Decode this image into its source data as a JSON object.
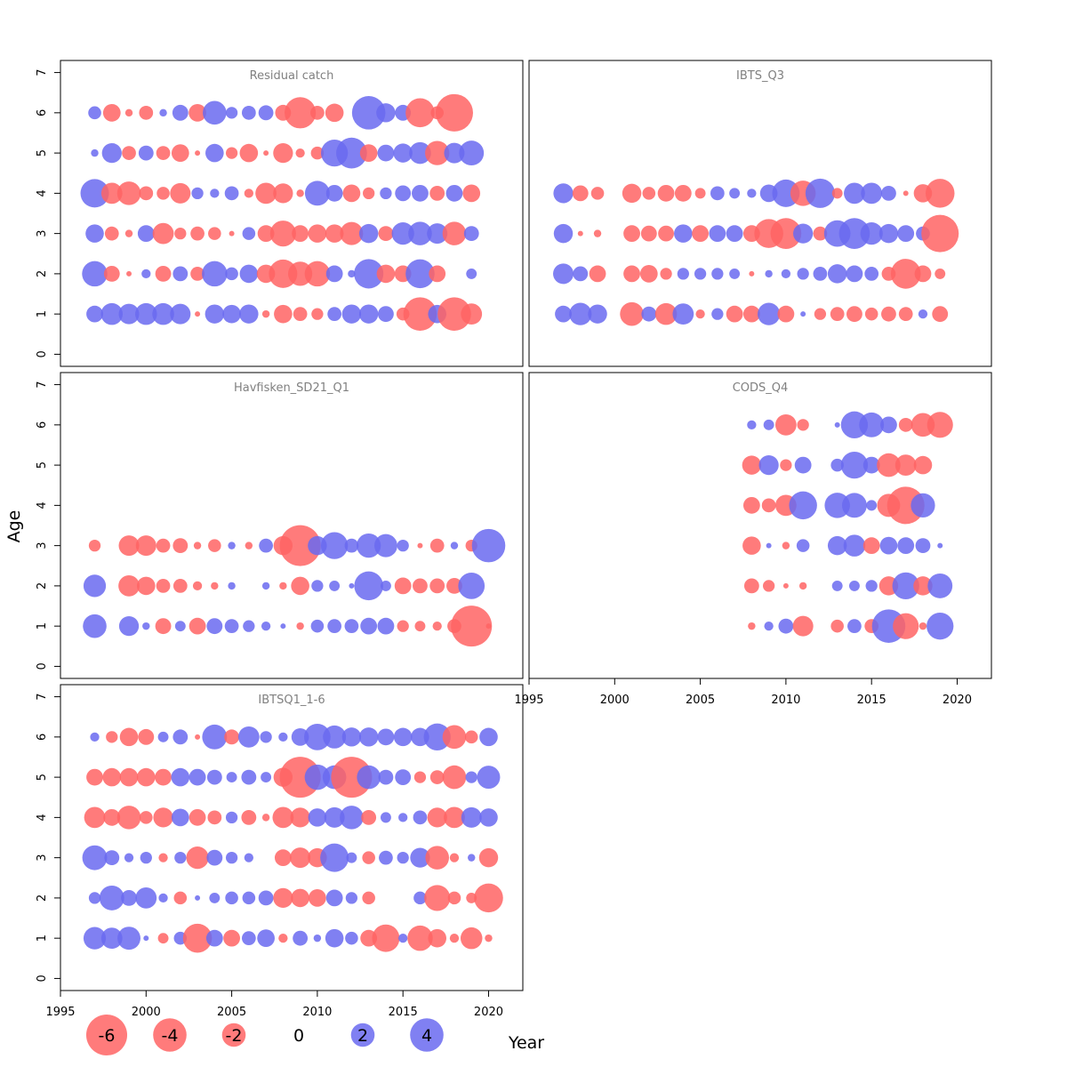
{
  "chart_data": {
    "type": "scatter",
    "subtype": "bubble-residuals",
    "xlabel": "Year",
    "ylabel": "Age",
    "xlim": [
      1995,
      2022
    ],
    "ylim": [
      -0.3,
      7.3
    ],
    "xticks": [
      1995,
      2000,
      2005,
      2010,
      2015,
      2020
    ],
    "yticks": [
      0,
      1,
      2,
      3,
      4,
      5,
      6,
      7
    ],
    "colors": {
      "positive": "#6a6af0",
      "negative": "#ff6464"
    },
    "legend": {
      "placement": "bottom",
      "values": [
        "-6",
        "-4",
        "-2",
        "0",
        "2",
        "4"
      ]
    },
    "panels": [
      {
        "title": "Residual catch",
        "years_start": 1997,
        "ages": [
          {
            "age": 1,
            "values": [
              1.0,
              1.7,
              1.5,
              1.7,
              1.7,
              1.5,
              -0.1,
              1.3,
              1.2,
              1.3,
              -0.2,
              -1.2,
              -0.7,
              -0.5,
              0.7,
              1.3,
              1.3,
              0.9,
              -0.6,
              -4.0,
              1.2,
              -4.0,
              -1.6
            ]
          },
          {
            "age": 2,
            "values": [
              2.3,
              -0.9,
              -0.1,
              0.3,
              -0.9,
              0.8,
              -0.7,
              2.3,
              0.6,
              1.2,
              -1.2,
              -2.9,
              -2.1,
              -2.3,
              1.0,
              0.2,
              3.1,
              -1.2,
              -1.0,
              3.0,
              -1.0,
              0.0,
              0.4
            ]
          },
          {
            "age": 3,
            "values": [
              1.2,
              -0.7,
              -0.2,
              1.0,
              -1.6,
              -0.5,
              -0.7,
              -0.6,
              -0.1,
              0.6,
              -1.0,
              -2.4,
              -1.0,
              -1.2,
              -1.2,
              -1.9,
              1.3,
              -0.8,
              1.8,
              2.0,
              1.5,
              -2.0,
              0.8
            ]
          },
          {
            "age": 4,
            "values": [
              2.9,
              -1.6,
              -2.0,
              -0.7,
              -0.6,
              -1.5,
              0.5,
              0.3,
              0.7,
              -0.3,
              -1.6,
              -1.4,
              -0.2,
              2.2,
              1.0,
              -1.1,
              -0.5,
              0.5,
              0.9,
              1.0,
              -0.8,
              1.0,
              -1.1
            ]
          },
          {
            "age": 5,
            "values": [
              0.2,
              1.4,
              -0.7,
              0.8,
              -0.7,
              -1.1,
              -0.1,
              1.2,
              -0.5,
              -1.2,
              -0.1,
              -1.4,
              -0.3,
              -0.6,
              2.6,
              3.4,
              -1.1,
              1.0,
              1.3,
              1.7,
              -2.1,
              1.5,
              2.2
            ]
          },
          {
            "age": 6,
            "values": [
              0.6,
              -1.1,
              -0.2,
              -0.7,
              0.2,
              0.9,
              -1.1,
              2.0,
              0.5,
              0.7,
              0.8,
              -0.9,
              -3.5,
              -0.7,
              -1.2,
              0.0,
              4.0,
              1.3,
              0.9,
              -3.0,
              -0.6,
              -5.0,
              0.0
            ]
          }
        ]
      },
      {
        "title": "IBTS_Q3",
        "years_start": 1997,
        "ages": [
          {
            "age": 1,
            "values": [
              1.0,
              1.8,
              1.3,
              0.0,
              -2.0,
              0.8,
              -1.7,
              1.6,
              -0.3,
              0.5,
              -1.0,
              -1.0,
              1.8,
              -1.0,
              0.1,
              -0.5,
              -0.7,
              -0.9,
              -0.6,
              -0.8,
              -0.7,
              0.3,
              -0.9
            ]
          },
          {
            "age": 2,
            "values": [
              1.5,
              0.8,
              -1.0,
              0.0,
              -1.0,
              -1.1,
              -0.5,
              0.5,
              0.5,
              0.5,
              0.4,
              -0.1,
              0.2,
              0.3,
              0.5,
              0.7,
              1.3,
              1.0,
              0.7,
              -0.7,
              -3.2,
              -1.0,
              -0.4
            ]
          },
          {
            "age": 3,
            "values": [
              1.3,
              -0.1,
              -0.2,
              0.0,
              -1.0,
              -0.9,
              -0.9,
              1.2,
              -1.0,
              1.0,
              1.0,
              -1.0,
              -3.0,
              -3.4,
              1.4,
              -0.7,
              2.5,
              3.4,
              1.8,
              1.3,
              1.0,
              0.7,
              -5.0
            ]
          },
          {
            "age": 4,
            "values": [
              1.4,
              -0.9,
              -0.6,
              0.0,
              -1.3,
              -0.6,
              -1.0,
              -1.0,
              -0.4,
              0.7,
              0.4,
              0.3,
              1.1,
              2.7,
              -2.3,
              3.1,
              -0.4,
              1.6,
              1.6,
              0.8,
              -0.1,
              -1.2,
              -3.0
            ]
          }
        ]
      },
      {
        "title": "Havfisken_SD21_Q1",
        "years_start": 1997,
        "ages": [
          {
            "age": 1,
            "values": [
              2.0,
              0.0,
              1.4,
              0.2,
              -0.9,
              0.4,
              -1.0,
              0.9,
              0.7,
              0.5,
              0.3,
              0.1,
              -0.2,
              0.6,
              0.7,
              0.7,
              1.0,
              1.0,
              -0.5,
              -0.4,
              -0.3,
              -0.7,
              -6.0,
              -0.1
            ]
          },
          {
            "age": 2,
            "values": [
              1.8,
              0.0,
              -1.6,
              -1.2,
              -0.7,
              -0.7,
              -0.3,
              -0.2,
              0.2,
              0.0,
              0.2,
              -0.2,
              -1.2,
              0.5,
              0.4,
              0.1,
              3.0,
              0.4,
              -1.0,
              -0.8,
              -0.8,
              -0.9,
              2.5
            ]
          },
          {
            "age": 3,
            "values": [
              -0.5,
              0.0,
              -1.5,
              -1.5,
              -0.7,
              -0.8,
              -0.2,
              -0.6,
              0.2,
              -0.2,
              0.7,
              -1.3,
              -6.0,
              1.3,
              2.6,
              0.7,
              2.1,
              1.9,
              0.5,
              -0.1,
              -0.7,
              0.2,
              -0.5,
              4.0
            ]
          }
        ]
      },
      {
        "title": "CODS_Q4",
        "years_start": 2008,
        "ages": [
          {
            "age": 1,
            "values": [
              -0.2,
              0.3,
              0.8,
              -1.5,
              0.0,
              -0.6,
              0.7,
              -0.7,
              4.0,
              -2.4,
              -0.2,
              2.6
            ]
          },
          {
            "age": 2,
            "values": [
              -0.8,
              -0.5,
              -0.1,
              -0.2,
              0.0,
              0.4,
              0.4,
              0.5,
              -1.3,
              2.6,
              -1.3,
              2.2
            ]
          },
          {
            "age": 3,
            "values": [
              -1.2,
              0.1,
              -0.2,
              0.6,
              0.0,
              1.3,
              1.7,
              -1.0,
              1.1,
              1.0,
              0.8,
              0.1
            ]
          },
          {
            "age": 4,
            "values": [
              -1.0,
              -0.7,
              -1.6,
              2.8,
              0.0,
              2.3,
              2.2,
              0.4,
              -1.9,
              -5.0,
              2.1,
              0.0
            ]
          },
          {
            "age": 5,
            "values": [
              -1.3,
              1.4,
              -0.5,
              1.0,
              0.0,
              0.6,
              2.6,
              1.0,
              -2.0,
              -1.6,
              -1.2,
              0.0
            ]
          },
          {
            "age": 6,
            "values": [
              0.3,
              0.4,
              -1.6,
              -0.5,
              0.0,
              0.1,
              2.6,
              2.2,
              1.0,
              -0.7,
              -2.0,
              -2.4
            ]
          }
        ]
      },
      {
        "title": "IBTSQ1_1-6",
        "years_start": 1997,
        "ages": [
          {
            "age": 1,
            "values": [
              1.8,
              1.6,
              1.9,
              0.1,
              -0.4,
              0.6,
              -3.0,
              1.0,
              -1.0,
              0.7,
              1.1,
              -0.3,
              0.8,
              0.2,
              1.2,
              0.6,
              -1.0,
              -2.7,
              0.3,
              -2.3,
              -1.2,
              -0.3,
              -1.7,
              -0.2
            ]
          },
          {
            "age": 2,
            "values": [
              0.5,
              2.2,
              0.9,
              1.6,
              0.3,
              -0.6,
              0.1,
              0.4,
              0.6,
              0.6,
              0.8,
              -1.4,
              -1.2,
              -1.1,
              1.0,
              0.5,
              -0.6,
              0.0,
              0.0,
              0.6,
              -2.4,
              -0.6,
              -0.4,
              -3.0
            ]
          },
          {
            "age": 3,
            "values": [
              2.2,
              0.8,
              0.3,
              0.5,
              -0.3,
              0.5,
              -1.8,
              0.9,
              0.5,
              0.3,
              0.0,
              -1.0,
              -1.5,
              -1.3,
              2.9,
              0.4,
              -0.6,
              0.7,
              0.5,
              1.4,
              -2.0,
              -0.3,
              0.2,
              -1.3
            ]
          },
          {
            "age": 4,
            "values": [
              -1.6,
              -1.0,
              -2.0,
              -0.6,
              -1.4,
              1.1,
              -1.0,
              -0.7,
              0.5,
              -0.8,
              -0.2,
              -1.6,
              -1.4,
              1.2,
              1.5,
              2.0,
              -0.8,
              0.4,
              0.3,
              0.7,
              -1.4,
              -1.6,
              1.5,
              1.2
            ]
          },
          {
            "age": 5,
            "values": [
              -1.0,
              -1.2,
              -1.2,
              -1.2,
              -1.0,
              1.2,
              1.0,
              0.8,
              0.4,
              0.8,
              0.4,
              -1.3,
              -6.0,
              2.3,
              2.0,
              -6.0,
              2.0,
              0.8,
              0.9,
              -0.5,
              -0.7,
              -2.0,
              0.5,
              1.9
            ]
          },
          {
            "age": 6,
            "values": [
              0.3,
              -0.5,
              -1.2,
              -0.9,
              0.4,
              0.8,
              -0.1,
              2.2,
              -0.8,
              1.6,
              0.5,
              0.3,
              1.1,
              2.5,
              1.9,
              1.3,
              1.3,
              1.0,
              1.2,
              1.2,
              2.6,
              -2.0,
              -0.6,
              1.2
            ]
          }
        ]
      }
    ]
  }
}
